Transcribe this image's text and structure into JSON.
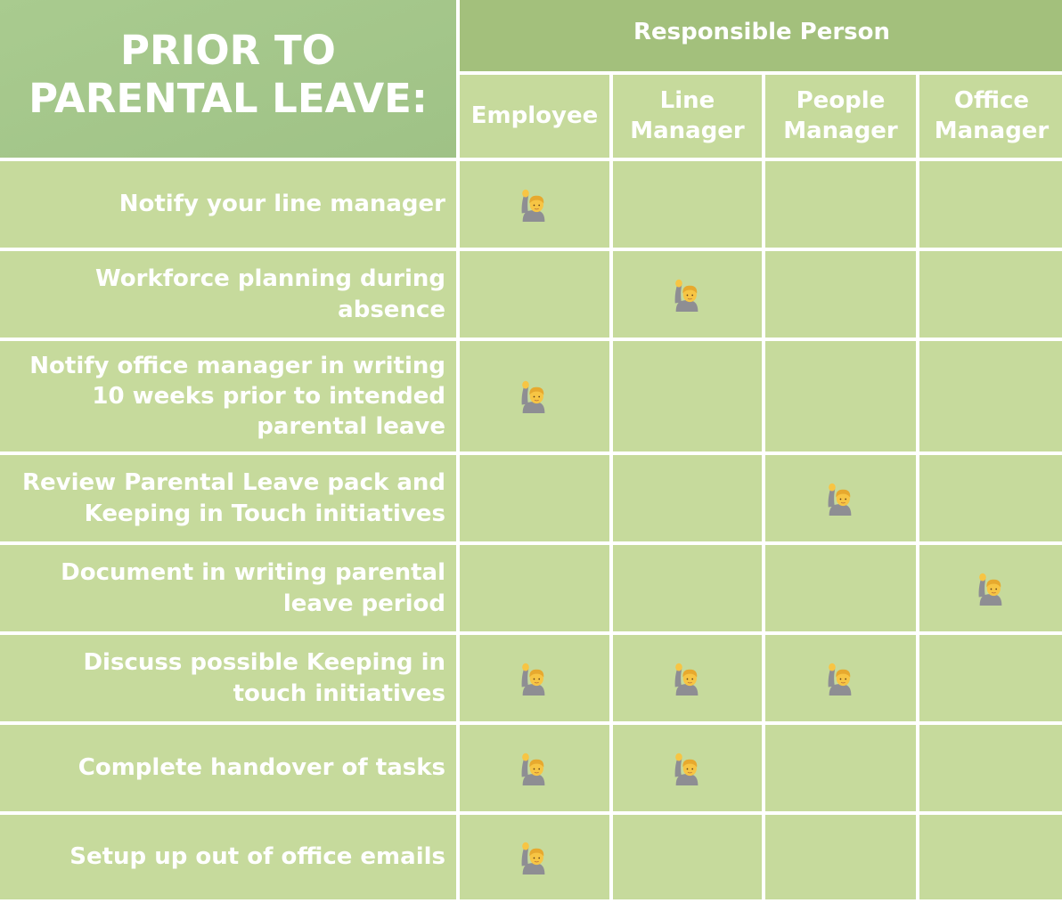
{
  "title": "PRIOR TO\nPARENTAL LEAVE:",
  "responsible_header": "Responsible Person",
  "columns": [
    "Employee",
    "Line\nManager",
    "People\nManager",
    "Office\nManager"
  ],
  "icons": {
    "assigned": "person-raising-hand-icon"
  },
  "colors": {
    "title_bg": "#a9cb8f",
    "header_bg": "#a3c07c",
    "cell_bg": "#c6da9c",
    "text": "#ffffff",
    "grid_lines": "#ffffff"
  },
  "rows": [
    {
      "task": "Notify your line manager",
      "assigned": [
        true,
        false,
        false,
        false
      ]
    },
    {
      "task": "Workforce planning during absence",
      "assigned": [
        false,
        true,
        false,
        false
      ]
    },
    {
      "task": "Notify office manager in writing 10 weeks prior to intended parental leave",
      "assigned": [
        true,
        false,
        false,
        false
      ]
    },
    {
      "task": "Review Parental Leave pack and Keeping in Touch initiatives",
      "assigned": [
        false,
        false,
        true,
        false
      ]
    },
    {
      "task": "Document in writing parental leave period",
      "assigned": [
        false,
        false,
        false,
        true
      ]
    },
    {
      "task": "Discuss possible Keeping in touch initiatives",
      "assigned": [
        true,
        true,
        true,
        false
      ]
    },
    {
      "task": "Complete handover of tasks",
      "assigned": [
        true,
        true,
        false,
        false
      ]
    },
    {
      "task": "Setup up out of office emails",
      "assigned": [
        true,
        false,
        false,
        false
      ]
    }
  ]
}
